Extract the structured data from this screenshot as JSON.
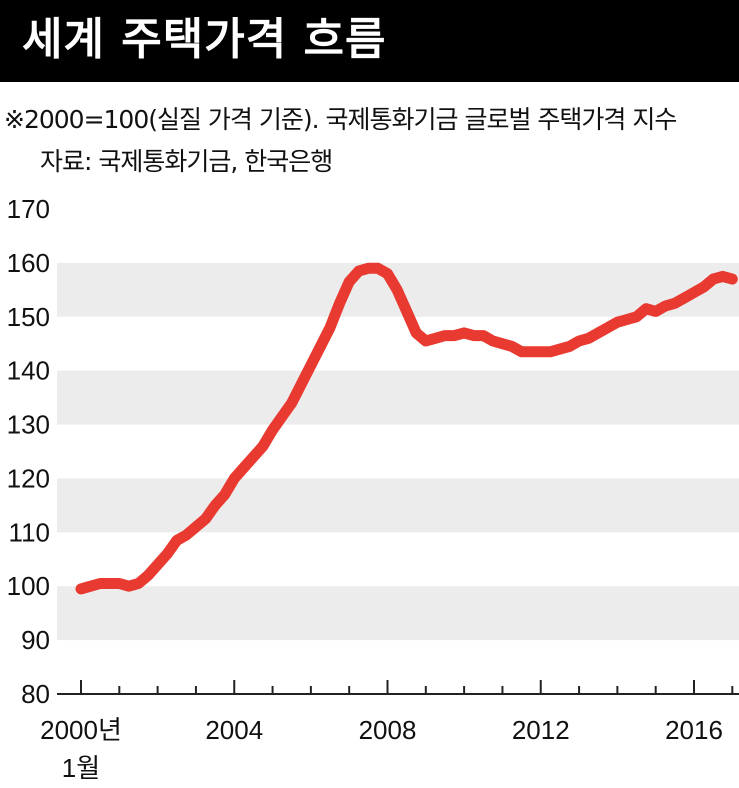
{
  "title": "세계 주택가격 흐름",
  "note": "※2000=100(실질 가격 기준). 국제통화기금 글로벌 주택가격 지수",
  "source": "자료: 국제통화기금, 한국은행",
  "chart_data": {
    "type": "line",
    "title": "세계 주택가격 흐름",
    "ylim": [
      80,
      170
    ],
    "yticks": [
      80,
      90,
      100,
      110,
      120,
      130,
      140,
      150,
      160,
      170
    ],
    "xlim": [
      2000,
      2017.3
    ],
    "xticks": [
      {
        "x": 2000,
        "label": "2000년",
        "label2": "1월"
      },
      {
        "x": 2004,
        "label": "2004",
        "label2": ""
      },
      {
        "x": 2008,
        "label": "2008",
        "label2": ""
      },
      {
        "x": 2012,
        "label": "2012",
        "label2": ""
      },
      {
        "x": 2016,
        "label": "2016",
        "label2": ""
      }
    ],
    "grid": "alternating horizontal bands",
    "line_color": "#e83a30",
    "series": [
      {
        "x": [
          2000.0,
          2000.25,
          2000.5,
          2000.75,
          2001.0,
          2001.25,
          2001.5,
          2001.75,
          2002.0,
          2002.25,
          2002.5,
          2002.75,
          2003.0,
          2003.25,
          2003.5,
          2003.75,
          2004.0,
          2004.25,
          2004.5,
          2004.75,
          2005.0,
          2005.25,
          2005.5,
          2005.75,
          2006.0,
          2006.25,
          2006.5,
          2006.75,
          2007.0,
          2007.25,
          2007.5,
          2007.75,
          2008.0,
          2008.25,
          2008.5,
          2008.75,
          2009.0,
          2009.25,
          2009.5,
          2009.75,
          2010.0,
          2010.25,
          2010.5,
          2010.75,
          2011.0,
          2011.25,
          2011.5,
          2011.75,
          2012.0,
          2012.25,
          2012.5,
          2012.75,
          2013.0,
          2013.25,
          2013.5,
          2013.75,
          2014.0,
          2014.25,
          2014.5,
          2014.75,
          2015.0,
          2015.25,
          2015.5,
          2015.75,
          2016.0,
          2016.25,
          2016.5,
          2016.75,
          2017.0
        ],
        "values": [
          99.5,
          100.0,
          100.5,
          100.5,
          100.5,
          100.0,
          100.5,
          102.0,
          104.0,
          106.0,
          108.5,
          109.5,
          111.0,
          112.5,
          115.0,
          117.0,
          120.0,
          122.0,
          124.0,
          126.0,
          129.0,
          131.5,
          134.0,
          137.5,
          141.0,
          144.5,
          148.0,
          152.5,
          156.5,
          158.5,
          159.0,
          159.0,
          158.0,
          155.0,
          151.0,
          147.0,
          145.5,
          146.0,
          146.5,
          146.5,
          147.0,
          146.5,
          146.5,
          145.5,
          145.0,
          144.5,
          143.5,
          143.5,
          143.5,
          143.5,
          144.0,
          144.5,
          145.5,
          146.0,
          147.0,
          148.0,
          149.0,
          149.5,
          150.0,
          151.5,
          151.0,
          152.0,
          152.5,
          153.5,
          154.5,
          155.5,
          157.0,
          157.5,
          157.0
        ]
      }
    ]
  }
}
